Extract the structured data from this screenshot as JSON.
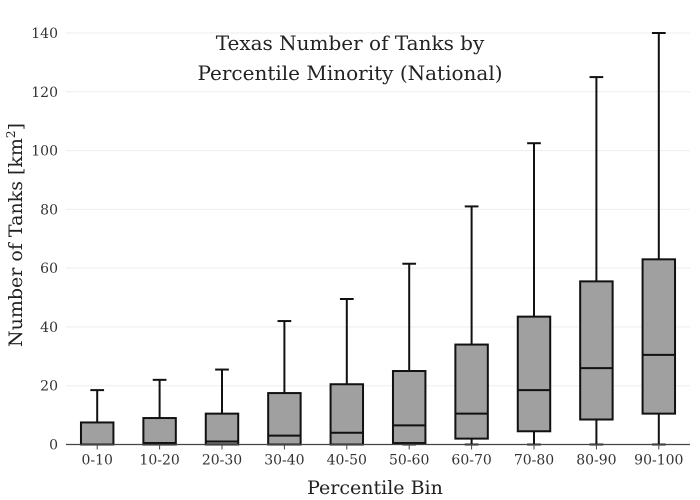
{
  "chart_data": {
    "type": "box",
    "title_lines": [
      "Texas Number of Tanks by",
      "Percentile Minority (National)"
    ],
    "xlabel": "Percentile Bin",
    "ylabel_main": "Number of Tanks  [km",
    "ylabel_sup": "2",
    "ylabel_end": "]",
    "ylim": [
      0,
      140
    ],
    "yticks": [
      0,
      20,
      40,
      60,
      80,
      100,
      120,
      140
    ],
    "grid": true,
    "categories": [
      "0-10",
      "10-20",
      "20-30",
      "30-40",
      "40-50",
      "50-60",
      "60-70",
      "70-80",
      "80-90",
      "90-100"
    ],
    "box_color": "#a0a0a0",
    "boxes": [
      {
        "min": 0,
        "q1": 0,
        "median": 0,
        "q3": 7.5,
        "max": 18.5
      },
      {
        "min": 0,
        "q1": 0,
        "median": 0.5,
        "q3": 9,
        "max": 22
      },
      {
        "min": 0,
        "q1": 0,
        "median": 1,
        "q3": 10.5,
        "max": 25.5
      },
      {
        "min": 0,
        "q1": 0,
        "median": 3,
        "q3": 17.5,
        "max": 42
      },
      {
        "min": 0,
        "q1": 0,
        "median": 4,
        "q3": 20.5,
        "max": 49.5
      },
      {
        "min": 0,
        "q1": 0.5,
        "median": 6.5,
        "q3": 25,
        "max": 61.5
      },
      {
        "min": 0,
        "q1": 2,
        "median": 10.5,
        "q3": 34,
        "max": 81
      },
      {
        "min": 0,
        "q1": 4.5,
        "median": 18.5,
        "q3": 43.5,
        "max": 102.5
      },
      {
        "min": 0,
        "q1": 8.5,
        "median": 26,
        "q3": 55.5,
        "max": 125
      },
      {
        "min": 0,
        "q1": 10.5,
        "median": 30.5,
        "q3": 63,
        "max": 140
      }
    ]
  }
}
